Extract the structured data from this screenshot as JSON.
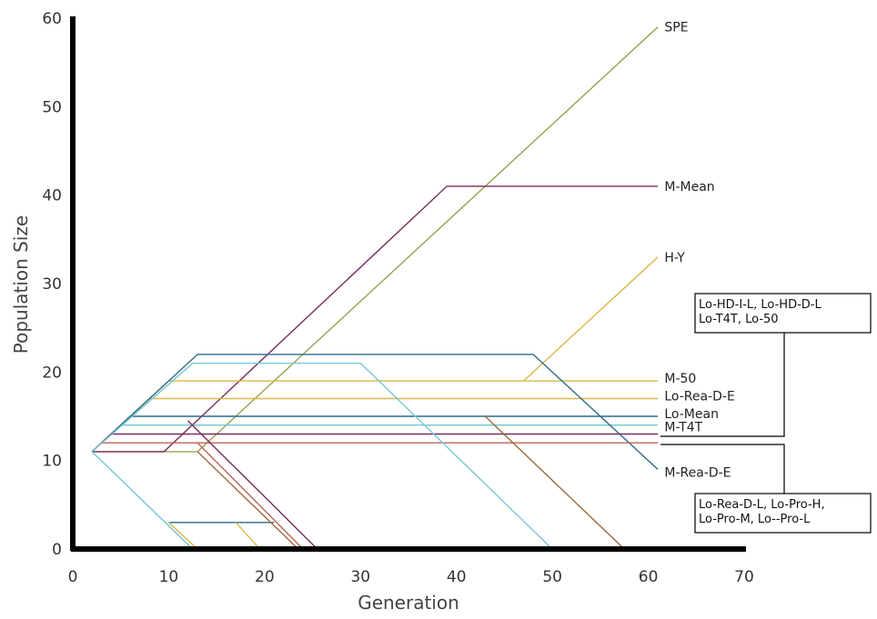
{
  "chart_data": {
    "type": "line",
    "title": "",
    "xlabel": "Generation",
    "ylabel": "Population Size",
    "xlim": [
      0,
      70
    ],
    "ylim": [
      0,
      60
    ],
    "xticks": [
      0,
      10,
      20,
      30,
      40,
      50,
      60,
      70
    ],
    "yticks": [
      0,
      10,
      20,
      30,
      40,
      50,
      60
    ],
    "grid": false,
    "series": [
      {
        "name": "SPE",
        "color": "#9aa050",
        "points": [
          [
            2,
            11
          ],
          [
            13,
            11
          ],
          [
            61,
            59
          ]
        ]
      },
      {
        "name": "M-Mean",
        "color": "#7a2a5e",
        "points": [
          [
            2,
            11
          ],
          [
            9.5,
            11
          ],
          [
            39,
            41
          ],
          [
            61,
            41
          ]
        ]
      },
      {
        "name": "H-Y",
        "color": "#d8b84a",
        "points": [
          [
            47,
            19
          ],
          [
            61,
            33
          ]
        ]
      },
      {
        "name": "M-50",
        "color": "#d8b84a",
        "points": [
          [
            2,
            11
          ],
          [
            10,
            19
          ],
          [
            61,
            19
          ]
        ]
      },
      {
        "name": "Lo-Rea-D-E",
        "color": "#d8b84a",
        "points": [
          [
            2,
            11
          ],
          [
            8,
            17
          ],
          [
            61,
            17
          ]
        ]
      },
      {
        "name": "Lo-Mean",
        "color": "#2a6a8a",
        "points": [
          [
            2,
            11
          ],
          [
            6,
            15
          ],
          [
            61,
            15
          ]
        ]
      },
      {
        "name": "M-T4T",
        "color": "#6ec6d2",
        "points": [
          [
            2,
            11
          ],
          [
            5,
            14
          ],
          [
            61,
            14
          ]
        ]
      },
      {
        "name": "M-Rea-D-E",
        "color": "#2a6a8a",
        "points": [
          [
            2,
            11
          ],
          [
            13,
            22
          ],
          [
            48,
            22
          ],
          [
            61,
            9
          ]
        ]
      },
      {
        "color": "#7a2a5e",
        "points": [
          [
            2,
            11
          ],
          [
            4,
            13
          ],
          [
            61,
            13
          ]
        ]
      },
      {
        "color": "#c0605a",
        "points": [
          [
            2,
            11
          ],
          [
            3,
            12
          ],
          [
            61,
            12
          ]
        ]
      },
      {
        "color": "#7bc7d5",
        "points": [
          [
            2,
            11
          ],
          [
            12.5,
            21
          ],
          [
            30,
            21
          ],
          [
            50,
            0
          ]
        ]
      },
      {
        "color": "#9c6a3a",
        "points": [
          [
            43,
            15
          ],
          [
            57.5,
            0
          ]
        ]
      },
      {
        "color": "#6ec6d2",
        "points": [
          [
            2,
            11
          ],
          [
            12.5,
            0
          ]
        ]
      },
      {
        "color": "#2a6a8a",
        "points": [
          [
            10,
            3
          ],
          [
            21,
            3
          ]
        ]
      },
      {
        "color": "#d8b84a",
        "points": [
          [
            10,
            3
          ],
          [
            13,
            0
          ],
          [
            19.5,
            0
          ],
          [
            17,
            3
          ]
        ]
      },
      {
        "color": "#9c6a3a",
        "points": [
          [
            13,
            11
          ],
          [
            23.5,
            0
          ]
        ]
      },
      {
        "color": "#7a2a5e",
        "points": [
          [
            12,
            14.5
          ],
          [
            25.5,
            0
          ]
        ]
      },
      {
        "color": "#c0605a",
        "points": [
          [
            13,
            12
          ],
          [
            24,
            0
          ]
        ]
      }
    ],
    "labels": [
      {
        "text": "SPE",
        "x": 61.5,
        "y": 59
      },
      {
        "text": "M-Mean",
        "x": 61.5,
        "y": 41
      },
      {
        "text": "H-Y",
        "x": 61.5,
        "y": 33
      },
      {
        "text": "M-50",
        "x": 61.5,
        "y": 19.3
      },
      {
        "text": "Lo-Rea-D-E",
        "x": 61.5,
        "y": 17.3
      },
      {
        "text": "Lo-Mean",
        "x": 61.5,
        "y": 15.3
      },
      {
        "text": "M-T4T",
        "x": 61.5,
        "y": 13.8
      },
      {
        "text": "M-Rea-D-E",
        "x": 61.5,
        "y": 8.7
      }
    ],
    "annotation_boxes": [
      {
        "lines": [
          "Lo-HD-I-L, Lo-HD-D-L",
          "Lo-T4T, Lo-50"
        ]
      },
      {
        "lines": [
          "Lo-Rea-D-L, Lo-Pro-H,",
          "Lo-Pro-M, Lo--Pro-L"
        ]
      }
    ]
  }
}
